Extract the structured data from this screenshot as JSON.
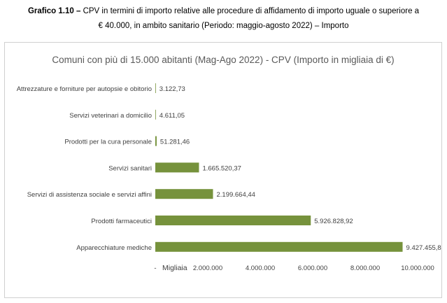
{
  "caption": {
    "label": "Grafico 1.10 –",
    "line1": "CPV in termini di importo relative alle procedure di affidamento di importo uguale o superiore a",
    "line2": "€ 40.000, in ambito sanitario (Periodo: maggio-agosto 2022) – Importo"
  },
  "chart_data": {
    "type": "bar",
    "orientation": "horizontal",
    "title": "Comuni con più di 15.000 abitanti (Mag-Ago 2022) - CPV (Importo in migliaia di €)",
    "categories": [
      "Attrezzature e forniture per autopsie e obitorio",
      "Servizi veterinari a domicilio",
      "Prodotti per la cura personale",
      "Servizi sanitari",
      "Servizi di assistenza sociale e servizi affini",
      "Prodotti farmaceutici",
      "Apparecchiature mediche"
    ],
    "values": [
      3122.73,
      4611.05,
      51281.46,
      1665520.37,
      2199664.44,
      5926828.92,
      9427455.83
    ],
    "data_labels": [
      "3.122,73",
      "4.611,05",
      "51.281,46",
      "1.665.520,37",
      "2.199.664,44",
      "5.926.828,92",
      "9.427.455,83"
    ],
    "xlim": [
      0,
      10000000
    ],
    "xticks": [
      0,
      2000000,
      4000000,
      6000000,
      8000000,
      10000000
    ],
    "xtick_labels": [
      "-",
      "2.000.000",
      "4.000.000",
      "6.000.000",
      "8.000.000",
      "10.000.000"
    ],
    "xlabel": "Migliaia",
    "grid": false,
    "bar_color": "#76923c"
  }
}
